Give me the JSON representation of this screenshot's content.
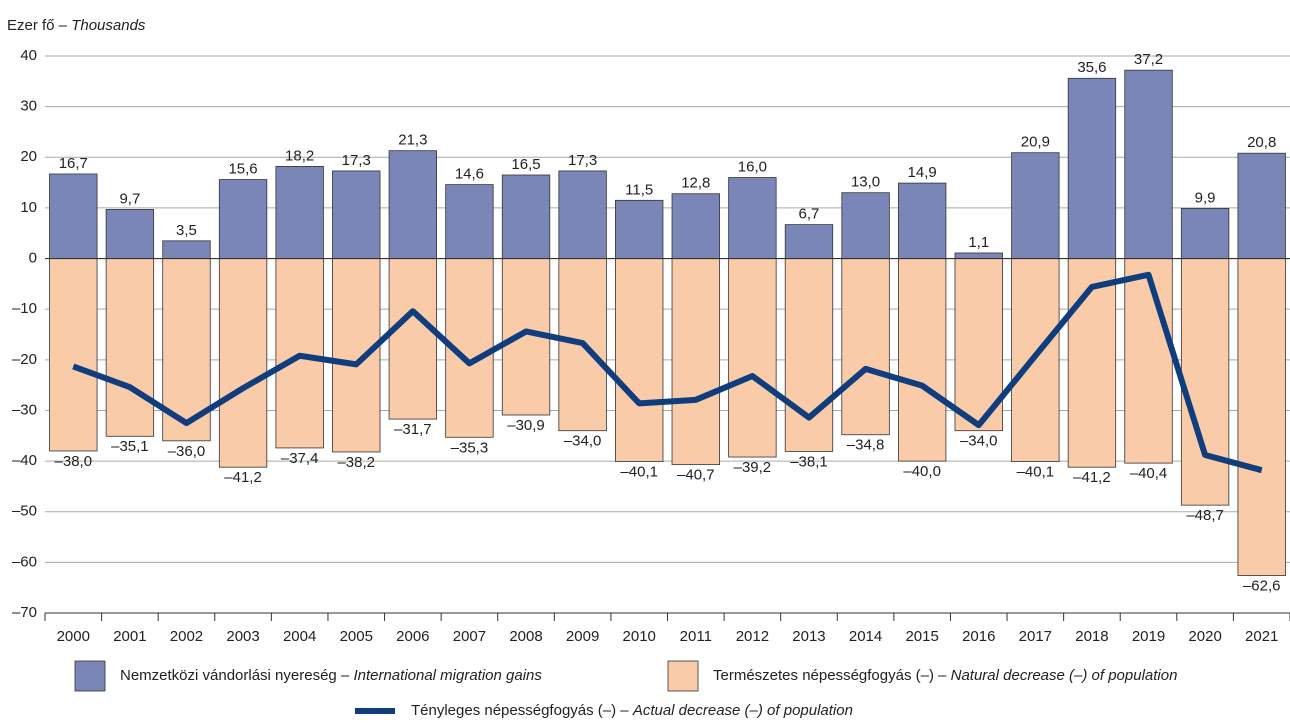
{
  "chart_data": {
    "type": "bar",
    "ylabel": "Ezer fő –",
    "ylabel_en": "Thousands",
    "categories": [
      "2000",
      "2001",
      "2002",
      "2003",
      "2004",
      "2005",
      "2006",
      "2007",
      "2008",
      "2009",
      "2010",
      "2011",
      "2012",
      "2013",
      "2014",
      "2015",
      "2016",
      "2017",
      "2018",
      "2019",
      "2020",
      "2021"
    ],
    "series": [
      {
        "name": "Nemzetközi vándorlási nyereség –",
        "name_en": "International migration gains",
        "color": "#7b86b8",
        "kind": "bar",
        "values": [
          16.7,
          9.7,
          3.5,
          15.6,
          18.2,
          17.3,
          21.3,
          14.6,
          16.5,
          17.3,
          11.5,
          12.8,
          16.0,
          6.7,
          13.0,
          14.9,
          1.1,
          20.9,
          35.6,
          37.2,
          9.9,
          20.8
        ],
        "value_labels": [
          "16,7",
          "9,7",
          "3,5",
          "15,6",
          "18,2",
          "17,3",
          "21,3",
          "14,6",
          "16,5",
          "17,3",
          "11,5",
          "12,8",
          "16,0",
          "6,7",
          "13,0",
          "14,9",
          "1,1",
          "20,9",
          "35,6",
          "37,2",
          "9,9",
          "20,8"
        ]
      },
      {
        "name": "Természetes népességfogyás (–) –",
        "name_en": "Natural decrease (–) of population",
        "color": "#f9cba8",
        "kind": "bar",
        "values": [
          -38.0,
          -35.1,
          -36.0,
          -41.2,
          -37.4,
          -38.2,
          -31.7,
          -35.3,
          -30.9,
          -34.0,
          -40.1,
          -40.7,
          -39.2,
          -38.1,
          -34.8,
          -40.0,
          -34.0,
          -40.1,
          -41.2,
          -40.4,
          -48.7,
          -62.6
        ],
        "value_labels": [
          "–38,0",
          "–35,1",
          "–36,0",
          "–41,2",
          "–37,4",
          "–38,2",
          "–31,7",
          "–35,3",
          "–30,9",
          "–34,0",
          "–40,1",
          "–40,7",
          "–39,2",
          "–38,1",
          "–34,8",
          "–40,0",
          "–34,0",
          "–40,1",
          "–41,2",
          "–40,4",
          "–48,7",
          "–62,6"
        ]
      },
      {
        "name": "Tényleges népességfogyás (–) –",
        "name_en": "Actual decrease (–) of population",
        "color": "#0f3d7e",
        "kind": "line",
        "values": [
          -21.3,
          -25.4,
          -32.5,
          -25.6,
          -19.2,
          -20.9,
          -10.4,
          -20.7,
          -14.4,
          -16.7,
          -28.6,
          -27.9,
          -23.2,
          -31.4,
          -21.8,
          -25.1,
          -32.9,
          -19.2,
          -5.6,
          -3.2,
          -38.8,
          -41.8
        ]
      }
    ],
    "ylim": [
      -70,
      40
    ],
    "yticks": [
      {
        "value": -70,
        "label": "–70"
      },
      {
        "value": -60,
        "label": "–60"
      },
      {
        "value": -50,
        "label": "–50"
      },
      {
        "value": -40,
        "label": "–40"
      },
      {
        "value": -30,
        "label": "–30"
      },
      {
        "value": -20,
        "label": "–20"
      },
      {
        "value": -10,
        "label": "–10"
      },
      0,
      10,
      20,
      30,
      40
    ],
    "grid": true
  }
}
